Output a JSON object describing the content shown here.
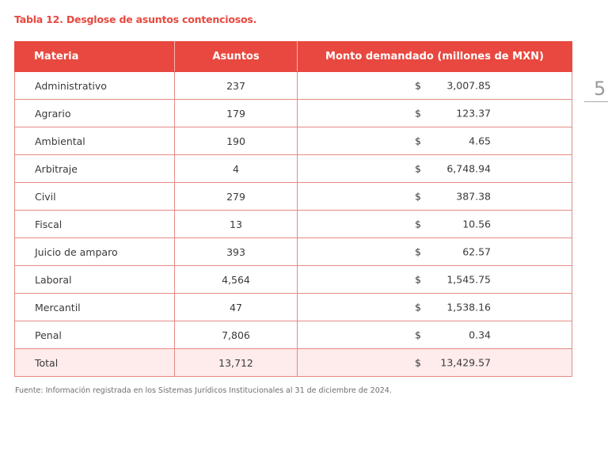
{
  "caption": "Tabla 12. Desglose de asuntos contenciosos.",
  "headers": {
    "materia": "Materia",
    "asuntos": "Asuntos",
    "monto": "Monto demandado (millones de MXN)"
  },
  "currency_symbol": "$",
  "rows": [
    {
      "materia": "Administrativo",
      "asuntos": "237",
      "monto": "3,007.85"
    },
    {
      "materia": "Agrario",
      "asuntos": "179",
      "monto": "123.37"
    },
    {
      "materia": "Ambiental",
      "asuntos": "190",
      "monto": "4.65"
    },
    {
      "materia": "Arbitraje",
      "asuntos": "4",
      "monto": "6,748.94"
    },
    {
      "materia": "Civil",
      "asuntos": "279",
      "monto": "387.38"
    },
    {
      "materia": "Fiscal",
      "asuntos": "13",
      "monto": "10.56"
    },
    {
      "materia": "Juicio de amparo",
      "asuntos": "393",
      "monto": "62.57"
    },
    {
      "materia": "Laboral",
      "asuntos": "4,564",
      "monto": "1,545.75"
    },
    {
      "materia": "Mercantil",
      "asuntos": "47",
      "monto": "1,538.16"
    },
    {
      "materia": "Penal",
      "asuntos": "7,806",
      "monto": "0.34"
    }
  ],
  "total": {
    "materia": "Total",
    "asuntos": "13,712",
    "monto": "13,429.57"
  },
  "footnote": "Fuente: Información registrada en los Sistemas Jurídicos Institucionales al 31 de diciembre de 2024.",
  "page_number": "5",
  "colors": {
    "accent": "#e8483f",
    "grid": "#e68a83",
    "total_bg": "#fdeceb"
  }
}
